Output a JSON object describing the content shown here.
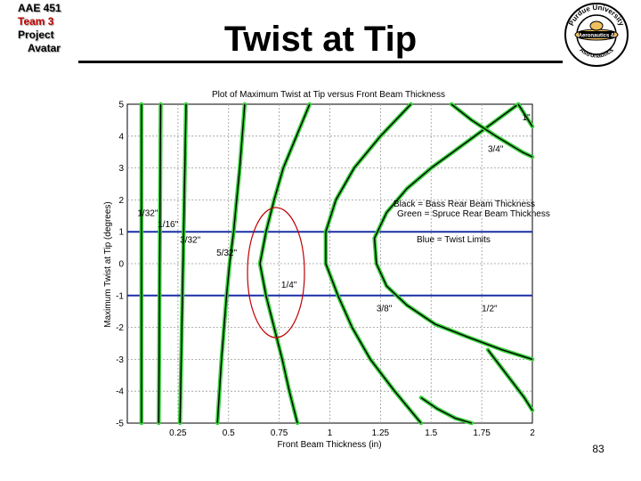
{
  "header": {
    "logo_lines": [
      "AAE 451",
      "Team 3",
      "Project",
      "Avatar"
    ],
    "title": "Twist at Tip",
    "seal_text_top": "Purdue University",
    "seal_text_left": "Aeronautics &",
    "seal_text_bottom": "Astronautics",
    "page_number": "83"
  },
  "colors": {
    "green_curve": "#39d13c",
    "black_curve": "#000000",
    "limit_line": "#1a2fa6",
    "highlight_ellipse": "#c00000",
    "grid": "#9a9a9a"
  },
  "chart_data": {
    "type": "line",
    "title": "Plot of Maximum Twist at Tip versus Front Beam Thickness",
    "xlabel": "Front Beam Thickness (in)",
    "ylabel": "Maximum Twist at Tip (degrees)",
    "xlim": [
      0,
      2
    ],
    "ylim": [
      -5,
      5
    ],
    "xticks": [
      "0.25",
      "0.5",
      "0.75",
      "1",
      "1.25",
      "1.5",
      "1.75",
      "2"
    ],
    "yticks": [
      "5",
      "4",
      "3",
      "2",
      "1",
      "0",
      "-1",
      "-2",
      "-3",
      "-4",
      "-5"
    ],
    "grid": true,
    "legend_text": [
      "Black = Bass Rear Beam Thickness",
      "Green = Spruce Rear Beam Thickness",
      "Blue = Twist Limits"
    ],
    "limits": [
      1,
      -1
    ],
    "series": [
      {
        "name": "1/32\"",
        "label_at": [
          0.05,
          1.5
        ],
        "points": [
          [
            0.07,
            5
          ],
          [
            0.07,
            -5
          ]
        ]
      },
      {
        "name": "1/16\"",
        "label_at": [
          0.15,
          1.15
        ],
        "points": [
          [
            0.165,
            5
          ],
          [
            0.16,
            0
          ],
          [
            0.155,
            -5
          ]
        ]
      },
      {
        "name": "3/32\"",
        "label_at": [
          0.26,
          0.65
        ],
        "points": [
          [
            0.29,
            5
          ],
          [
            0.275,
            0
          ],
          [
            0.26,
            -5
          ]
        ]
      },
      {
        "name": "5/32\"",
        "label_at": [
          0.44,
          0.25
        ],
        "points": [
          [
            0.58,
            5
          ],
          [
            0.555,
            3
          ],
          [
            0.525,
            1
          ],
          [
            0.505,
            0
          ],
          [
            0.49,
            -1
          ],
          [
            0.465,
            -3
          ],
          [
            0.445,
            -5
          ]
        ]
      },
      {
        "name": "1/4\"",
        "label_at": [
          0.76,
          -0.75
        ],
        "points": [
          [
            0.9,
            5
          ],
          [
            0.835,
            4
          ],
          [
            0.77,
            3
          ],
          [
            0.725,
            2
          ],
          [
            0.685,
            1
          ],
          [
            0.655,
            0
          ],
          [
            0.685,
            -1
          ],
          [
            0.725,
            -2
          ],
          [
            0.765,
            -3
          ],
          [
            0.8,
            -4
          ],
          [
            0.84,
            -5
          ]
        ]
      },
      {
        "name": "3/8\"",
        "label_at": [
          1.23,
          -1.5
        ],
        "points": [
          [
            1.4,
            5
          ],
          [
            1.25,
            4
          ],
          [
            1.12,
            3
          ],
          [
            1.03,
            2
          ],
          [
            0.98,
            1
          ],
          [
            0.98,
            0
          ],
          [
            1.04,
            -1
          ],
          [
            1.11,
            -2
          ],
          [
            1.2,
            -3
          ],
          [
            1.32,
            -4
          ],
          [
            1.45,
            -5
          ]
        ]
      },
      {
        "name": "1/2\"",
        "label_at": [
          1.75,
          -1.5
        ],
        "points": [
          [
            1.93,
            5
          ],
          [
            1.78,
            4.3
          ],
          [
            1.63,
            3.6
          ],
          [
            1.5,
            3
          ],
          [
            1.38,
            2.35
          ],
          [
            1.28,
            1.6
          ],
          [
            1.22,
            0.8
          ],
          [
            1.23,
            0
          ],
          [
            1.28,
            -0.7
          ],
          [
            1.38,
            -1.3
          ],
          [
            1.52,
            -1.9
          ],
          [
            1.68,
            -2.3
          ],
          [
            1.85,
            -2.7
          ],
          [
            2.0,
            -3
          ]
        ]
      },
      {
        "name": "3/4\"",
        "label_at": [
          1.78,
          3.5
        ],
        "points": [
          [
            1.6,
            5
          ],
          [
            1.7,
            4.5
          ],
          [
            1.82,
            4
          ],
          [
            1.95,
            3.5
          ],
          [
            2.0,
            3.35
          ]
        ]
      },
      {
        "name": "1\"",
        "label_at": [
          1.95,
          4.5
        ],
        "points": [
          [
            1.93,
            5
          ],
          [
            1.97,
            4.6
          ],
          [
            2.0,
            4.3
          ]
        ]
      },
      {
        "name": "",
        "label_at": null,
        "points": [
          [
            1.78,
            -2.7
          ],
          [
            1.84,
            -3.2
          ],
          [
            1.9,
            -3.7
          ],
          [
            1.96,
            -4.2
          ],
          [
            2.0,
            -4.6
          ]
        ]
      },
      {
        "name": "",
        "label_at": null,
        "points": [
          [
            1.45,
            -4.2
          ],
          [
            1.53,
            -4.55
          ],
          [
            1.62,
            -4.85
          ],
          [
            1.7,
            -5
          ]
        ]
      }
    ],
    "annotation": "ellipse around 1/4\" curve near twist limits"
  }
}
